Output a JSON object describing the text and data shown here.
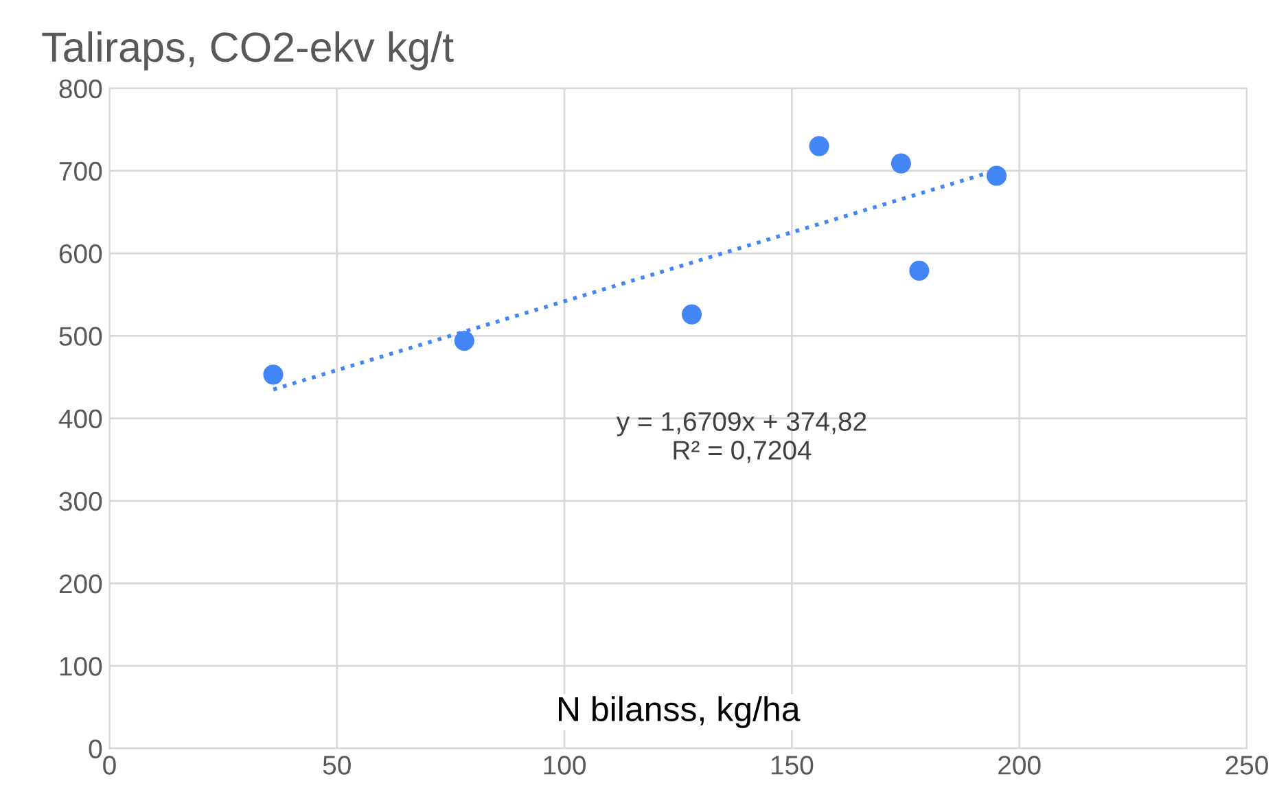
{
  "chart_data": {
    "type": "scatter",
    "title": "Taliraps, CO2-ekv kg/t",
    "xlabel": "N bilanss, kg/ha",
    "xlim": [
      0,
      250
    ],
    "xticks": [
      0,
      50,
      100,
      150,
      200,
      250
    ],
    "ylim": [
      0,
      800
    ],
    "yticks": [
      0,
      100,
      200,
      300,
      400,
      500,
      600,
      700,
      800
    ],
    "grid": true,
    "series": [
      {
        "color": "#4285f4",
        "marker": "circle",
        "x": [
          36,
          78,
          128,
          156,
          174,
          178,
          195
        ],
        "values": [
          453,
          494,
          526,
          730,
          709,
          579,
          694
        ]
      },
      {
        "type": "line",
        "color": "#4285f4",
        "line_style": "dotted",
        "marker": "none",
        "x": [
          36,
          194
        ],
        "values": [
          435.0,
          699.0
        ]
      }
    ],
    "annotations": [
      "y = 1,6709x + 374,82\nR² = 0,7204"
    ]
  }
}
